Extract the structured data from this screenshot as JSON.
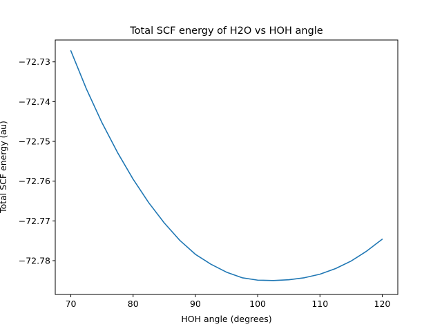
{
  "chart_data": {
    "type": "line",
    "title": "Total SCF energy of H2O vs HOH angle",
    "xlabel": "HOH angle (degrees)",
    "ylabel": "Total SCF energy (au)",
    "xlim": [
      67.5,
      122.5
    ],
    "ylim": [
      -72.7885,
      -72.7245
    ],
    "xticks": [
      70,
      80,
      90,
      100,
      110,
      120
    ],
    "xtick_labels": [
      "70",
      "80",
      "90",
      "100",
      "110",
      "120"
    ],
    "yticks": [
      -72.73,
      -72.74,
      -72.75,
      -72.76,
      -72.77,
      -72.78
    ],
    "ytick_labels": [
      "−72.73",
      "−72.74",
      "−72.75",
      "−72.76",
      "−72.77",
      "−72.78"
    ],
    "grid": false,
    "legend": "none",
    "series": [
      {
        "color": "#1f77b4",
        "x": [
          70.0,
          72.5,
          75.0,
          77.5,
          80.0,
          82.5,
          85.0,
          87.5,
          90.0,
          92.5,
          95.0,
          97.5,
          100.0,
          102.5,
          105.0,
          107.5,
          110.0,
          112.5,
          115.0,
          117.5,
          120.0
        ],
        "y": [
          -72.7272,
          -72.7368,
          -72.7453,
          -72.7528,
          -72.7595,
          -72.7654,
          -72.7705,
          -72.7749,
          -72.7784,
          -72.7809,
          -72.7829,
          -72.7843,
          -72.7849,
          -72.785,
          -72.7848,
          -72.7843,
          -72.7834,
          -72.782,
          -72.7801,
          -72.7776,
          -72.7746
        ]
      }
    ]
  }
}
